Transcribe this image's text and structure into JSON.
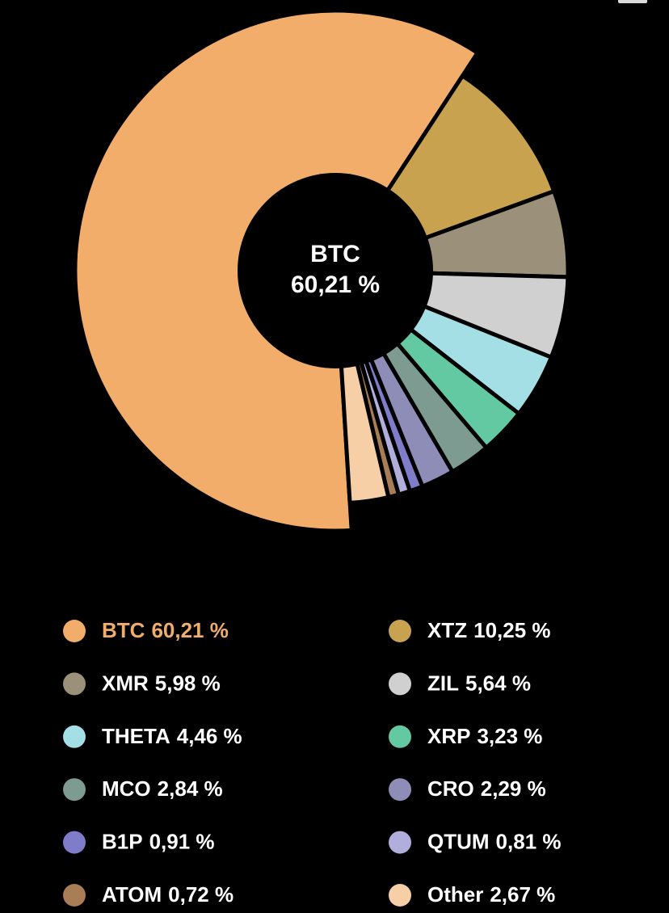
{
  "chart_data": {
    "type": "pie",
    "categories": [
      "BTC",
      "XTZ",
      "XMR",
      "ZIL",
      "THETA",
      "XRP",
      "MCO",
      "CRO",
      "B1P",
      "QTUM",
      "ATOM",
      "Other"
    ],
    "values": [
      60.21,
      10.25,
      5.98,
      5.64,
      4.46,
      3.23,
      2.84,
      2.29,
      0.91,
      0.81,
      0.72,
      2.67
    ],
    "value_labels": [
      "60,21 %",
      "10,25 %",
      "5,98 %",
      "5,64 %",
      "4,46 %",
      "3,23 %",
      "2,84 %",
      "2,29 %",
      "0,91 %",
      "0,81 %",
      "0,72 %",
      "2,67 %"
    ],
    "colors": [
      "#f2ad6a",
      "#c8a24e",
      "#9b9079",
      "#d0d0d0",
      "#a5dfe6",
      "#63c9a3",
      "#7d9b90",
      "#8e8db8",
      "#7f7cc9",
      "#b1aedc",
      "#a97d55",
      "#f6cfa6"
    ]
  }
}
